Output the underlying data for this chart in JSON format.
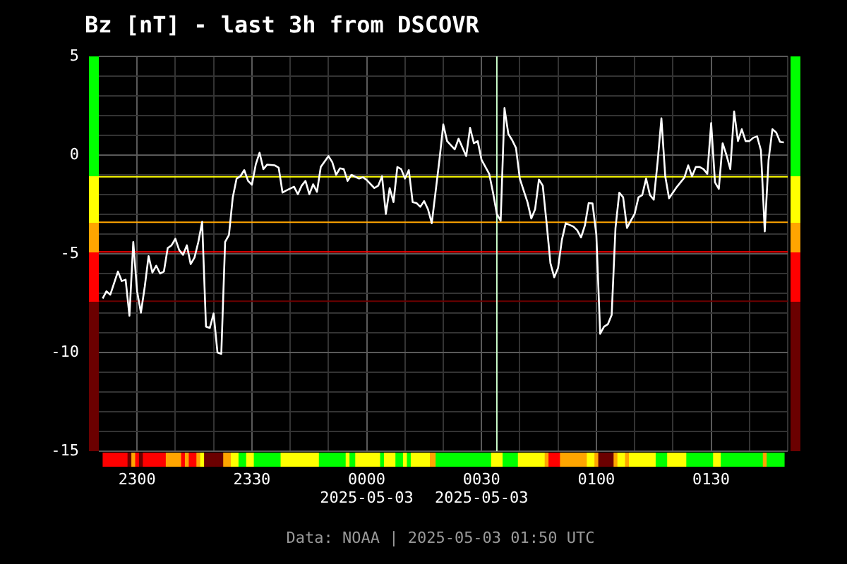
{
  "chart_data": {
    "type": "line",
    "title": "Bz [nT] - last 3h from DSCOVR",
    "annotations": [
      "Data: NOAA | 2025-05-03 01:50 UTC"
    ],
    "xlim": [
      "2025-05-02T22:50",
      "2025-05-03T01:50"
    ],
    "xticks": [
      {
        "value": "2025-05-02T23:00",
        "label": "2300"
      },
      {
        "value": "2025-05-02T23:10",
        "label": null
      },
      {
        "value": "2025-05-02T23:20",
        "label": null
      },
      {
        "value": "2025-05-02T23:30",
        "label": "2330"
      },
      {
        "value": "2025-05-02T23:40",
        "label": null
      },
      {
        "value": "2025-05-02T23:50",
        "label": null
      },
      {
        "value": "2025-05-03T00:00",
        "label": "0000\n2025-05-03"
      },
      {
        "value": "2025-05-03T00:10",
        "label": null
      },
      {
        "value": "2025-05-03T00:20",
        "label": null
      },
      {
        "value": "2025-05-03T00:30",
        "label": "0030\n2025-05-03"
      },
      {
        "value": "2025-05-03T00:40",
        "label": null
      },
      {
        "value": "2025-05-03T00:50",
        "label": null
      },
      {
        "value": "2025-05-03T01:00",
        "label": "0100"
      },
      {
        "value": "2025-05-03T01:10",
        "label": null
      },
      {
        "value": "2025-05-03T01:20",
        "label": null
      },
      {
        "value": "2025-05-03T01:30",
        "label": "0130"
      },
      {
        "value": "2025-05-03T01:40",
        "label": null
      },
      {
        "value": "2025-05-03T01:50",
        "label": null
      }
    ],
    "ylim": [
      -15,
      5
    ],
    "yticks": [
      5,
      {
        "value": 4,
        "label": null
      },
      {
        "value": 3,
        "label": null
      },
      {
        "value": 2,
        "label": null
      },
      {
        "value": 1,
        "label": null
      },
      0,
      {
        "value": -1,
        "label": null
      },
      {
        "value": -2,
        "label": null
      },
      {
        "value": -3,
        "label": null
      },
      {
        "value": -4,
        "label": null
      },
      -5,
      {
        "value": -6,
        "label": null
      },
      {
        "value": -7,
        "label": null
      },
      {
        "value": -8,
        "label": null
      },
      {
        "value": -9,
        "label": null
      },
      -10,
      {
        "value": -11,
        "label": null
      },
      {
        "value": -12,
        "label": null
      },
      {
        "value": -13,
        "label": null
      },
      {
        "value": -14,
        "label": null
      },
      -15
    ],
    "grid": true,
    "legend": false,
    "ref_lines": [
      {
        "axis": "y",
        "value": -1.1,
        "color": "#ffff00"
      },
      {
        "axis": "y",
        "value": -3.4,
        "color": "#ffa500"
      },
      {
        "axis": "y",
        "value": -4.9,
        "color": "#ff0000"
      },
      {
        "axis": "y",
        "value": -7.4,
        "color": "#6b0000"
      },
      {
        "axis": "x",
        "value": "2025-05-03T00:34",
        "color": "#ccffcc"
      }
    ],
    "series": [
      {
        "color": "#ffffff",
        "x": [
          "2025-05-02T22:51",
          "2025-05-02T22:52",
          "2025-05-02T22:53",
          "2025-05-02T22:55",
          "2025-05-02T22:56",
          "2025-05-02T22:57",
          "2025-05-02T22:58",
          "2025-05-02T22:59",
          "2025-05-02T23:00",
          "2025-05-02T23:01",
          "2025-05-02T23:02",
          "2025-05-02T23:03",
          "2025-05-02T23:04",
          "2025-05-02T23:05",
          "2025-05-02T23:06",
          "2025-05-02T23:07",
          "2025-05-02T23:08",
          "2025-05-02T23:09",
          "2025-05-02T23:10",
          "2025-05-02T23:11",
          "2025-05-02T23:12",
          "2025-05-02T23:13",
          "2025-05-02T23:14",
          "2025-05-02T23:15",
          "2025-05-02T23:16",
          "2025-05-02T23:17",
          "2025-05-02T23:18",
          "2025-05-02T23:19",
          "2025-05-02T23:20",
          "2025-05-02T23:21",
          "2025-05-02T23:22",
          "2025-05-02T23:23",
          "2025-05-02T23:24",
          "2025-05-02T23:25",
          "2025-05-02T23:26",
          "2025-05-02T23:27",
          "2025-05-02T23:28",
          "2025-05-02T23:29",
          "2025-05-02T23:30",
          "2025-05-02T23:31",
          "2025-05-02T23:32",
          "2025-05-02T23:33",
          "2025-05-02T23:34",
          "2025-05-02T23:36",
          "2025-05-02T23:37",
          "2025-05-02T23:38",
          "2025-05-02T23:39",
          "2025-05-02T23:41",
          "2025-05-02T23:42",
          "2025-05-02T23:43",
          "2025-05-02T23:44",
          "2025-05-02T23:45",
          "2025-05-02T23:46",
          "2025-05-02T23:47",
          "2025-05-02T23:48",
          "2025-05-02T23:50",
          "2025-05-02T23:51",
          "2025-05-02T23:52",
          "2025-05-02T23:53",
          "2025-05-02T23:54",
          "2025-05-02T23:55",
          "2025-05-02T23:56",
          "2025-05-02T23:58",
          "2025-05-02T23:59",
          "2025-05-03T00:00",
          "2025-05-03T00:02",
          "2025-05-03T00:03",
          "2025-05-03T00:04",
          "2025-05-03T00:05",
          "2025-05-03T00:06",
          "2025-05-03T00:07",
          "2025-05-03T00:08",
          "2025-05-03T00:09",
          "2025-05-03T00:10",
          "2025-05-03T00:11",
          "2025-05-03T00:12",
          "2025-05-03T00:13",
          "2025-05-03T00:14",
          "2025-05-03T00:15",
          "2025-05-03T00:16",
          "2025-05-03T00:17",
          "2025-05-03T00:19",
          "2025-05-03T00:20",
          "2025-05-03T00:21",
          "2025-05-03T00:23",
          "2025-05-03T00:24",
          "2025-05-03T00:26",
          "2025-05-03T00:27",
          "2025-05-03T00:28",
          "2025-05-03T00:29",
          "2025-05-03T00:30",
          "2025-05-03T00:32",
          "2025-05-03T00:33",
          "2025-05-03T00:34",
          "2025-05-03T00:35",
          "2025-05-03T00:36",
          "2025-05-03T00:37",
          "2025-05-03T00:38",
          "2025-05-03T00:39",
          "2025-05-03T00:40",
          "2025-05-03T00:41",
          "2025-05-03T00:42",
          "2025-05-03T00:43",
          "2025-05-03T00:44",
          "2025-05-03T00:45",
          "2025-05-03T00:46",
          "2025-05-03T00:47",
          "2025-05-03T00:48",
          "2025-05-03T00:49",
          "2025-05-03T00:50",
          "2025-05-03T00:51",
          "2025-05-03T00:52",
          "2025-05-03T00:54",
          "2025-05-03T00:55",
          "2025-05-03T00:56",
          "2025-05-03T00:57",
          "2025-05-03T00:58",
          "2025-05-03T00:59",
          "2025-05-03T01:00",
          "2025-05-03T01:01",
          "2025-05-03T01:02",
          "2025-05-03T01:03",
          "2025-05-03T01:04",
          "2025-05-03T01:05",
          "2025-05-03T01:06",
          "2025-05-03T01:07",
          "2025-05-03T01:08",
          "2025-05-03T01:09",
          "2025-05-03T01:10",
          "2025-05-03T01:11",
          "2025-05-03T01:12",
          "2025-05-03T01:13",
          "2025-05-03T01:14",
          "2025-05-03T01:15",
          "2025-05-03T01:16",
          "2025-05-03T01:17",
          "2025-05-03T01:18",
          "2025-05-03T01:19",
          "2025-05-03T01:20",
          "2025-05-03T01:21",
          "2025-05-03T01:22",
          "2025-05-03T01:23",
          "2025-05-03T01:24",
          "2025-05-03T01:25",
          "2025-05-03T01:26",
          "2025-05-03T01:27",
          "2025-05-03T01:28",
          "2025-05-03T01:29",
          "2025-05-03T01:30",
          "2025-05-03T01:31",
          "2025-05-03T01:32",
          "2025-05-03T01:33",
          "2025-05-03T01:34",
          "2025-05-03T01:35",
          "2025-05-03T01:36",
          "2025-05-03T01:37",
          "2025-05-03T01:38",
          "2025-05-03T01:39",
          "2025-05-03T01:40",
          "2025-05-03T01:41",
          "2025-05-03T01:42",
          "2025-05-03T01:43",
          "2025-05-03T01:44",
          "2025-05-03T01:45",
          "2025-05-03T01:46",
          "2025-05-03T01:47",
          "2025-05-03T01:48",
          "2025-05-03T01:49"
        ],
        "values": [
          -7.26,
          -6.9,
          -7.07,
          -5.9,
          -6.38,
          -6.31,
          -8.14,
          -4.4,
          -6.9,
          -7.98,
          -6.67,
          -5.12,
          -5.95,
          -5.6,
          -6.0,
          -5.9,
          -4.71,
          -4.57,
          -4.24,
          -4.81,
          -5.05,
          -4.57,
          -5.52,
          -5.19,
          -4.4,
          -3.38,
          -8.69,
          -8.76,
          -8.02,
          -10.0,
          -10.07,
          -4.4,
          -4.05,
          -2.14,
          -1.19,
          -1.07,
          -0.76,
          -1.31,
          -1.5,
          -0.48,
          0.12,
          -0.71,
          -0.48,
          -0.52,
          -0.64,
          -1.9,
          -1.79,
          -1.6,
          -1.98,
          -1.55,
          -1.31,
          -1.98,
          -1.48,
          -1.86,
          -0.6,
          -0.05,
          -0.36,
          -1.0,
          -0.67,
          -0.71,
          -1.31,
          -1.0,
          -1.19,
          -1.12,
          -1.26,
          -1.67,
          -1.55,
          -1.07,
          -2.98,
          -1.67,
          -2.38,
          -0.6,
          -0.71,
          -1.19,
          -0.76,
          -2.38,
          -2.43,
          -2.62,
          -2.33,
          -2.74,
          -3.45,
          -0.24,
          1.55,
          0.71,
          0.29,
          0.83,
          -0.05,
          1.38,
          0.6,
          0.71,
          -0.24,
          -0.95,
          -1.9,
          -2.98,
          -3.33,
          2.38,
          1.07,
          0.76,
          0.36,
          -1.19,
          -1.79,
          -2.38,
          -3.21,
          -2.74,
          -1.24,
          -1.55,
          -3.45,
          -5.48,
          -6.19,
          -5.71,
          -4.29,
          -3.45,
          -3.62,
          -3.81,
          -4.17,
          -3.57,
          -2.43,
          -2.45,
          -4.05,
          -9.05,
          -8.69,
          -8.57,
          -8.1,
          -3.69,
          -1.9,
          -2.14,
          -3.69,
          -3.33,
          -2.98,
          -2.14,
          -2.02,
          -1.19,
          -2.02,
          -2.26,
          -0.36,
          1.86,
          -1.07,
          -2.19,
          -1.9,
          -1.62,
          -1.38,
          -1.14,
          -0.52,
          -1.07,
          -0.6,
          -0.6,
          -0.71,
          -0.95,
          1.62,
          -1.38,
          -1.71,
          0.6,
          0.0,
          -0.71,
          2.21,
          0.71,
          1.31,
          0.71,
          0.71,
          0.88,
          0.95,
          0.24,
          -3.86,
          -0.24,
          1.31,
          1.14,
          0.67,
          0.64
        ]
      }
    ]
  }
}
